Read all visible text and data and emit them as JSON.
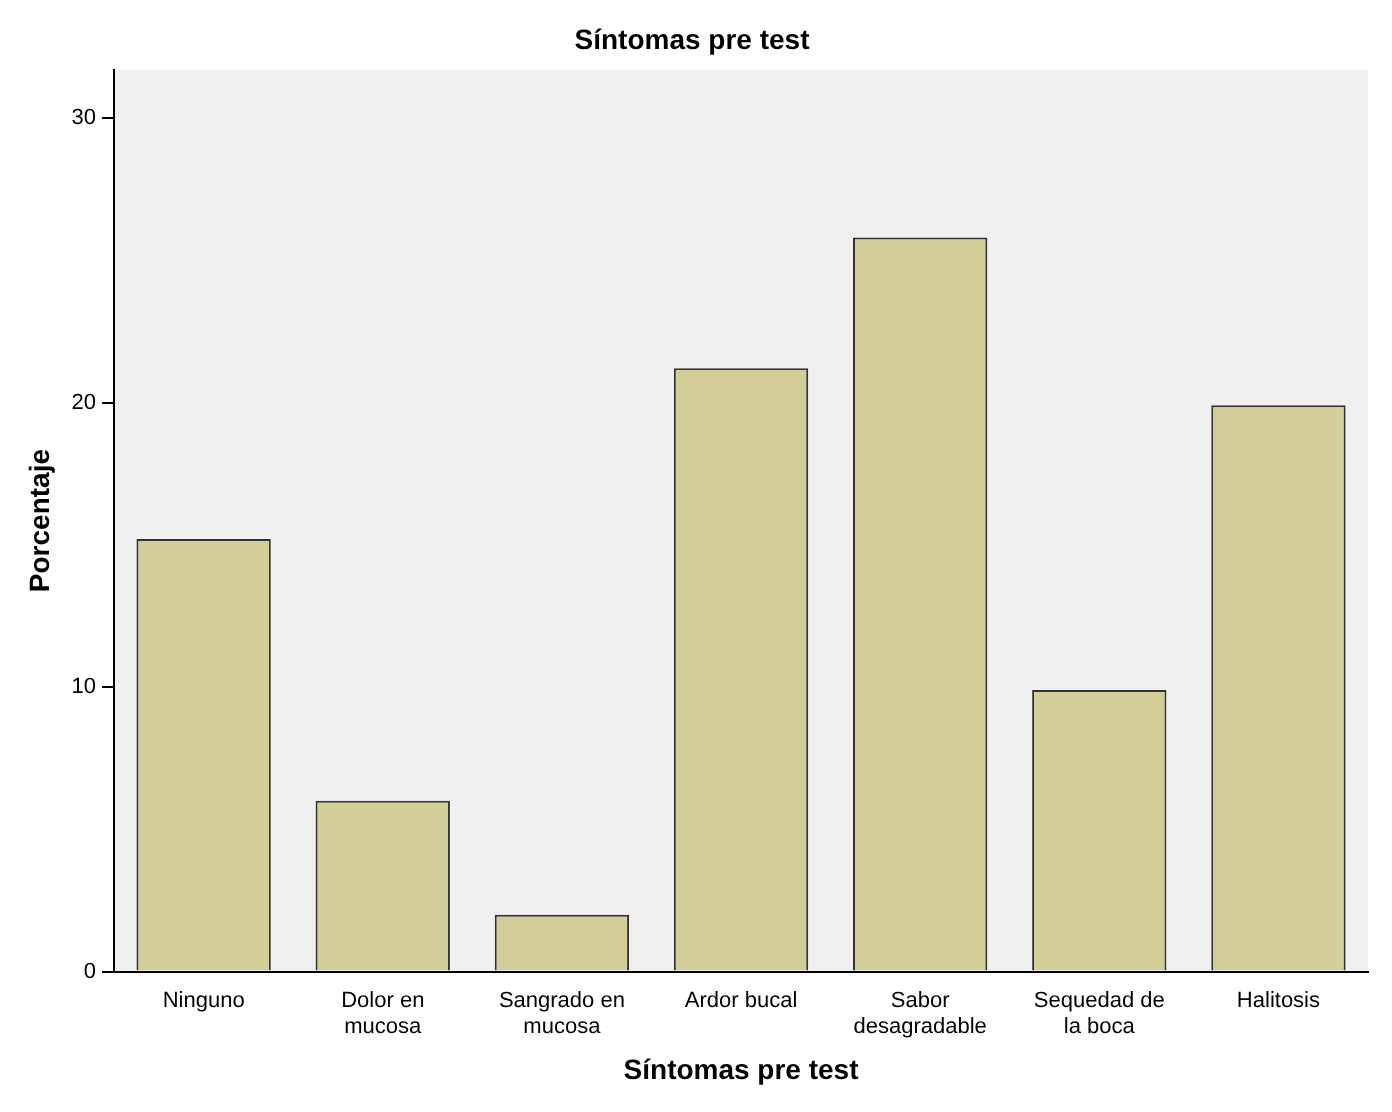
{
  "chart_data": {
    "type": "bar",
    "title": "Síntomas pre test",
    "xlabel": "Síntomas pre test",
    "ylabel": "Porcentaje",
    "categories": [
      "Ninguno",
      "Dolor en mucosa",
      "Sangrado en mucosa",
      "Ardor bucal",
      "Sabor desagradable",
      "Sequedad de la boca",
      "Halitosis"
    ],
    "values": [
      15.2,
      6.0,
      2.0,
      21.2,
      25.8,
      9.9,
      19.9
    ],
    "color": "#d3ce97",
    "ylim": [
      0,
      31.7
    ],
    "yticks": [
      0,
      10,
      20,
      30
    ],
    "grid": false,
    "legend": false
  }
}
